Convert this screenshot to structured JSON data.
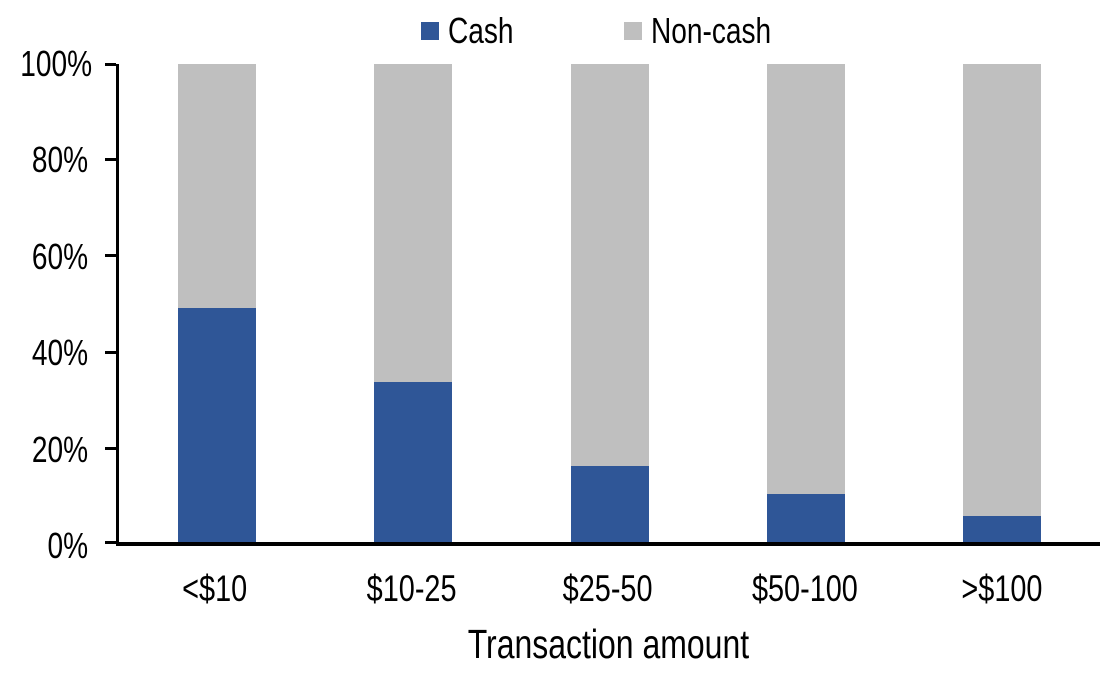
{
  "chart_data": {
    "type": "bar",
    "stacked": true,
    "percent_stacked": true,
    "title": "",
    "xlabel": "Transaction amount",
    "ylabel": "",
    "categories": [
      "<$10",
      "$10-25",
      "$25-50",
      "$50-100",
      ">$100"
    ],
    "series": [
      {
        "name": "Cash",
        "color": "#2F5697",
        "values": [
          49,
          33.5,
          16,
          10,
          5.5
        ]
      },
      {
        "name": "Non-cash",
        "color": "#BFBFBF",
        "values": [
          51,
          66.5,
          84,
          90,
          94.5
        ]
      }
    ],
    "y_ticks": [
      "0%",
      "20%",
      "40%",
      "60%",
      "80%",
      "100%"
    ],
    "ylim": [
      0,
      100
    ],
    "grid": false,
    "legend_position": "top-center",
    "axis_color": "#000000",
    "background_color": "#FFFFFF"
  }
}
